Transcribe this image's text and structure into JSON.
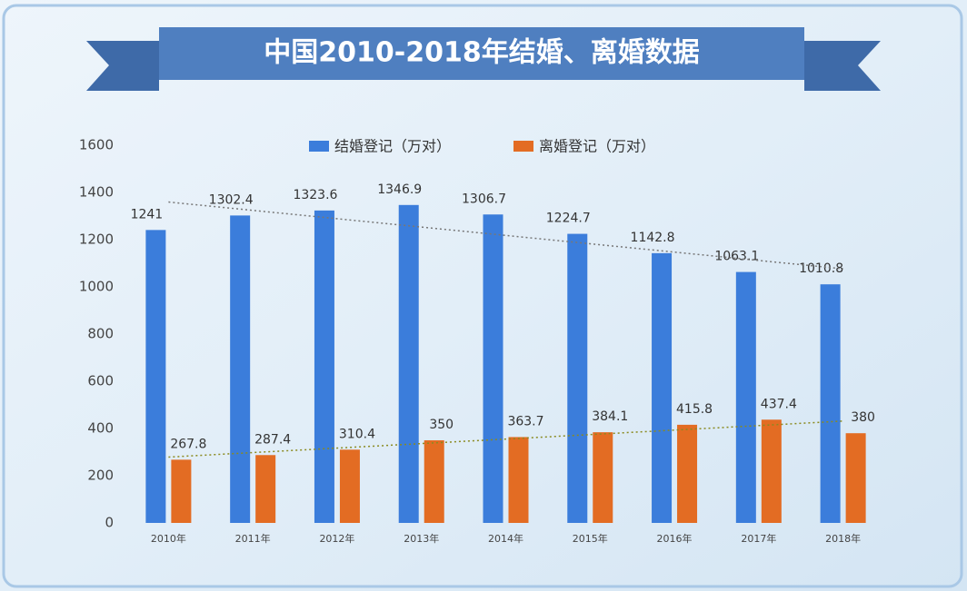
{
  "chart_data": {
    "type": "bar",
    "title": "中国2010-2018年结婚、离婚数据",
    "categories": [
      "2010年",
      "2011年",
      "2012年",
      "2013年",
      "2014年",
      "2015年",
      "2016年",
      "2017年",
      "2018年"
    ],
    "series": [
      {
        "name": "结婚登记（万对）",
        "color": "#3b7ddb",
        "values": [
          1241,
          1302.4,
          1323.6,
          1346.9,
          1306.7,
          1224.7,
          1142.8,
          1063.1,
          1010.8
        ]
      },
      {
        "name": "离婚登记（万对）",
        "color": "#e36c23",
        "values": [
          267.8,
          287.4,
          310.4,
          350,
          363.7,
          384.1,
          415.8,
          437.4,
          380
        ]
      }
    ],
    "ylim": [
      0,
      1600
    ],
    "yticks": [
      0,
      200,
      400,
      600,
      800,
      1000,
      1200,
      1400,
      1600
    ],
    "grid": false,
    "legend": "top"
  }
}
